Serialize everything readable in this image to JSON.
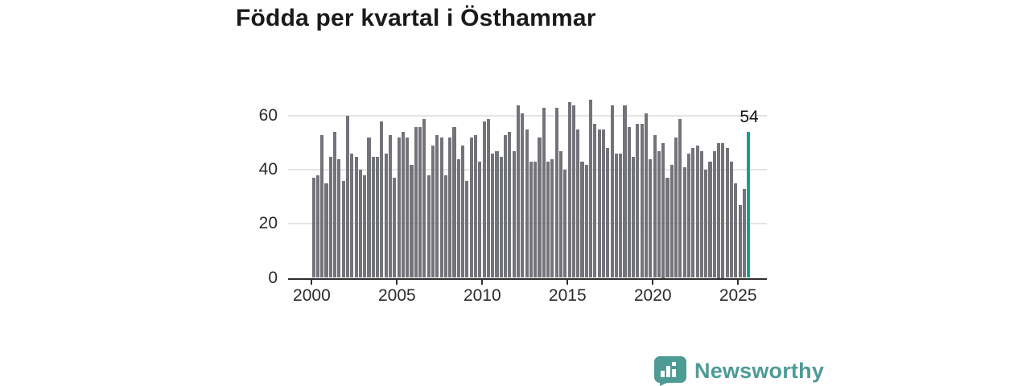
{
  "title": "Födda per kvartal i Östhammar",
  "chart_data": {
    "type": "bar",
    "title": "Födda per kvartal i Östhammar",
    "x_tick_labels": [
      "2000",
      "2005",
      "2010",
      "2015",
      "2020",
      "2025"
    ],
    "y_tick_labels": [
      "0",
      "20",
      "40",
      "60"
    ],
    "y_ticks": [
      0,
      20,
      40,
      60
    ],
    "ylim": [
      0,
      68
    ],
    "grid": "horizontal",
    "x_start": "2000 Q1",
    "x_end": "2025 Q3",
    "values": [
      37,
      38,
      53,
      35,
      45,
      54,
      44,
      36,
      60,
      46,
      45,
      40,
      38,
      52,
      45,
      45,
      58,
      46,
      53,
      37,
      52,
      54,
      52,
      42,
      56,
      56,
      59,
      38,
      49,
      53,
      52,
      38,
      52,
      56,
      44,
      49,
      36,
      52,
      53,
      43,
      58,
      59,
      46,
      47,
      45,
      53,
      54,
      47,
      64,
      61,
      55,
      43,
      43,
      52,
      63,
      43,
      44,
      63,
      47,
      40,
      65,
      64,
      55,
      43,
      42,
      66,
      57,
      55,
      55,
      48,
      64,
      46,
      46,
      64,
      56,
      45,
      57,
      57,
      61,
      44,
      53,
      47,
      50,
      37,
      42,
      52,
      59,
      41,
      46,
      48,
      49,
      47,
      40,
      43,
      47,
      50,
      50,
      48,
      43,
      35,
      27,
      33,
      54
    ],
    "bar_color": "#73737a",
    "highlight": {
      "index": 102,
      "value": 54,
      "label": "54",
      "color": "#14a18e"
    }
  },
  "branding": {
    "logo_text": "Newsworthy",
    "logo_color": "#4e9b96"
  }
}
